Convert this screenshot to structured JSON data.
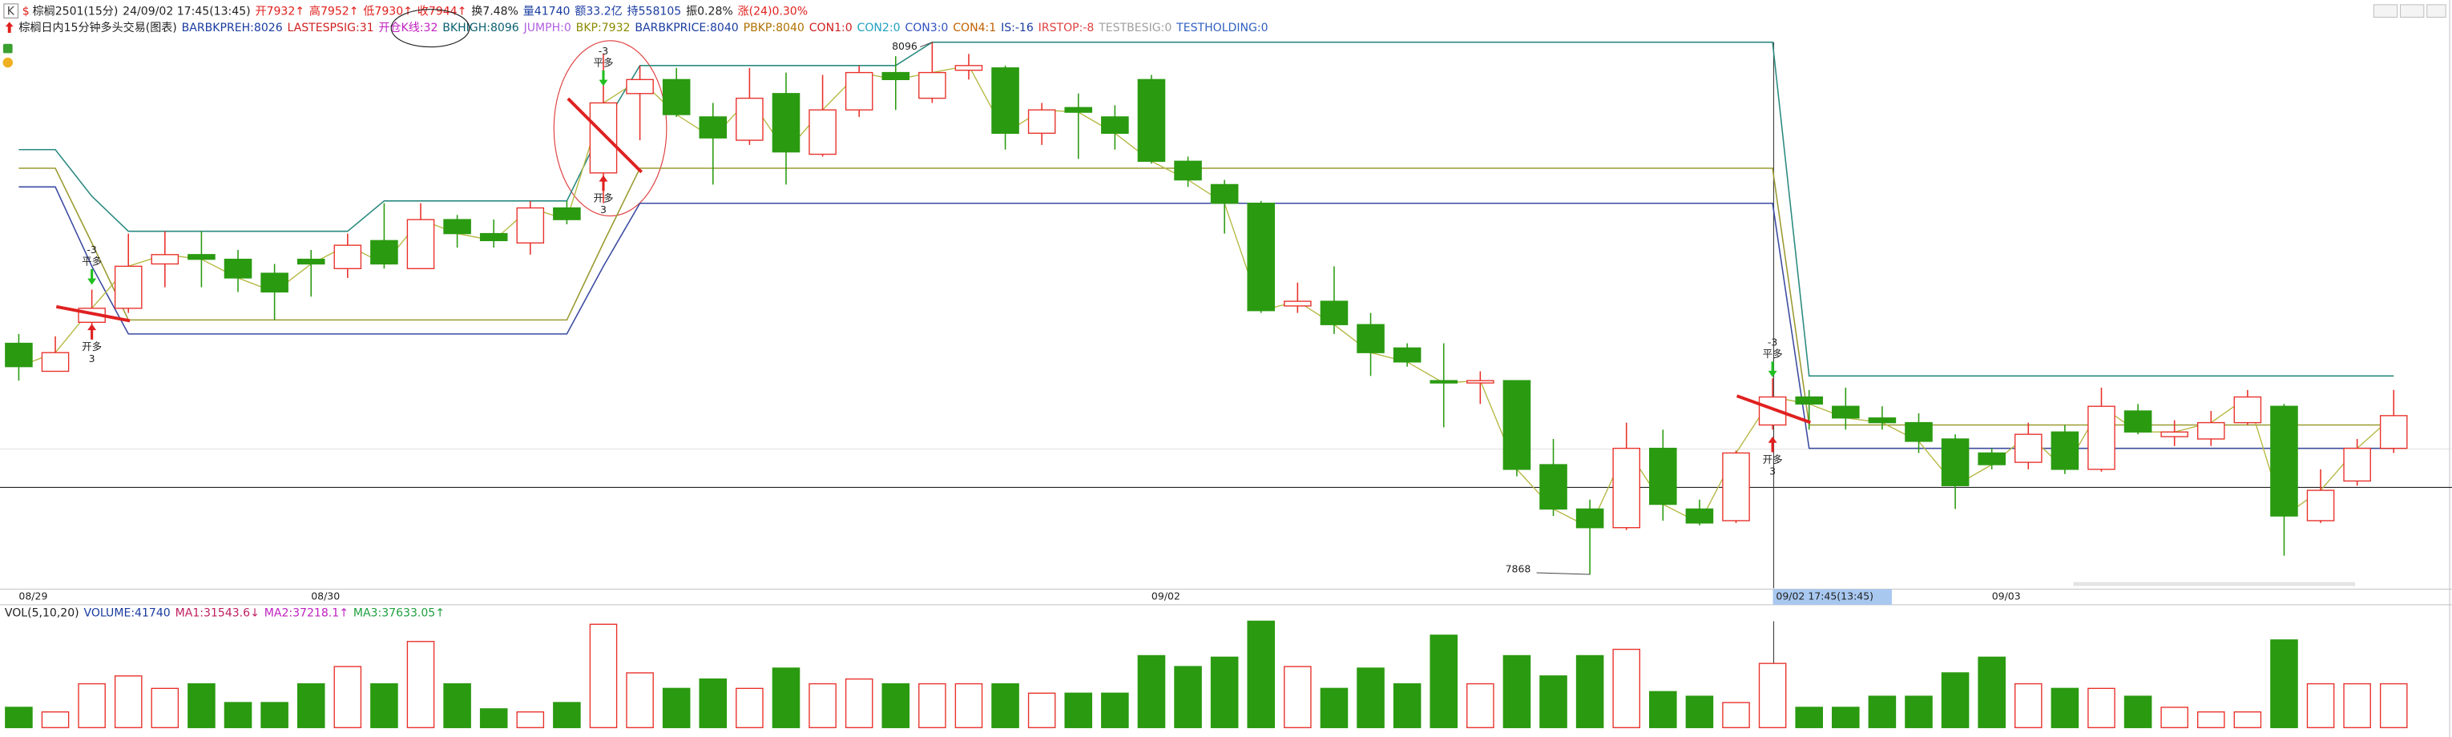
{
  "chart_data": {
    "type": "candlestick",
    "header": {
      "k_badge": "K",
      "symbol_icon": "$",
      "title": "棕榈2501(15分)",
      "datetime": "24/09/02 17:45(13:45)",
      "quote": [
        {
          "text": "开7932↑",
          "color": "#e0201c"
        },
        {
          "text": "高7952↑",
          "color": "#e0201c"
        },
        {
          "text": "低7930↑",
          "color": "#e0201c"
        },
        {
          "text": "收7944↑",
          "color": "#e0201c"
        },
        {
          "text": "换7.48%",
          "color": "#222222"
        },
        {
          "text": "量41740",
          "color": "#1a3ca0"
        },
        {
          "text": "额33.2亿",
          "color": "#1a3ca0"
        },
        {
          "text": "持558105",
          "color": "#1a3ca0"
        },
        {
          "text": "振0.28%",
          "color": "#222222"
        },
        {
          "text": "涨(24)0.30%",
          "color": "#e0201c"
        }
      ],
      "indicator_title": "棕榈日内15分钟多头交易(图表)",
      "indicators": [
        {
          "text": "BARBKPREH:8026",
          "color": "#1a3ca0"
        },
        {
          "text": "LASTESPSIG:31",
          "color": "#d02020"
        },
        {
          "text": "开仓K线:32",
          "color": "#c020c0"
        },
        {
          "text": "BKHIGH:8096",
          "color": "#0a6070"
        },
        {
          "text": "JUMPH:0",
          "color": "#b060e0"
        },
        {
          "text": "BKP:7932",
          "color": "#8a8a00"
        },
        {
          "text": "BARBKPRICE:8040",
          "color": "#1a3ca0"
        },
        {
          "text": "PBKP:8040",
          "color": "#b07000"
        },
        {
          "text": "CON1:0",
          "color": "#d02020"
        },
        {
          "text": "CON2:0",
          "color": "#20a0c0"
        },
        {
          "text": "CON3:0",
          "color": "#3050c0"
        },
        {
          "text": "CON4:1",
          "color": "#c06000"
        },
        {
          "text": "IS:-16",
          "color": "#1a3ca0"
        },
        {
          "text": "IRSTOP:-8",
          "color": "#e04040"
        },
        {
          "text": "TESTBESIG:0",
          "color": "#a0a0a0"
        },
        {
          "text": "TESTHOLDING:0",
          "color": "#3060c0"
        }
      ]
    },
    "categories": [
      "08/29",
      null,
      null,
      null,
      null,
      null,
      null,
      null,
      "08/30",
      null,
      null,
      null,
      null,
      null,
      null,
      null,
      null,
      null,
      null,
      null,
      null,
      null,
      null,
      null,
      null,
      null,
      null,
      null,
      null,
      null,
      null,
      "09/02",
      null,
      null,
      null,
      null,
      null,
      null,
      null,
      null,
      null,
      null,
      null,
      null,
      null,
      null,
      null,
      null,
      null,
      null,
      null,
      null,
      null,
      null,
      "09/03",
      null,
      null,
      null,
      null,
      null,
      null,
      null,
      null,
      null,
      null,
      null
    ],
    "open": [
      7967,
      7955,
      7976,
      7982,
      8001,
      8005,
      8003,
      7997,
      8003,
      7999,
      8011,
      7999,
      8020,
      8014,
      8010,
      8025,
      8040,
      8074,
      8080,
      8064,
      8054,
      8074,
      8048,
      8067,
      8083,
      8072,
      8084,
      8085,
      8057,
      8068,
      8064,
      8080,
      8045,
      8035,
      8027,
      7983,
      7985,
      7975,
      7965,
      7951,
      7950,
      7951,
      7915,
      7896,
      7888,
      7922,
      7896,
      7891,
      7932,
      7944,
      7940,
      7935,
      7933,
      7926,
      7920,
      7916,
      7929,
      7913,
      7938,
      7927,
      7926,
      7933,
      7940,
      7891,
      7908,
      7922
    ],
    "high": [
      7971,
      7970,
      7990,
      8014,
      8015,
      8015,
      8007,
      8001,
      8007,
      8014,
      8027,
      8027,
      8022,
      8020,
      8028,
      8028,
      8091,
      8086,
      8085,
      8070,
      8085,
      8083,
      8082,
      8086,
      8090,
      8096,
      8091,
      8086,
      8070,
      8074,
      8069,
      8082,
      8047,
      8037,
      8028,
      7993,
      8000,
      7980,
      7967,
      7967,
      7955,
      7951,
      7926,
      7900,
      7933,
      7930,
      7900,
      7921,
      7952,
      7947,
      7948,
      7940,
      7937,
      7928,
      7922,
      7933,
      7932,
      7948,
      7941,
      7934,
      7938,
      7947,
      7941,
      7913,
      7926,
      7947
    ],
    "low": [
      7951,
      7955,
      7970,
      7980,
      7991,
      7991,
      7989,
      7977,
      7987,
      7995,
      7999,
      7999,
      8008,
      8008,
      8005,
      8018,
      8027,
      8054,
      8064,
      8035,
      8052,
      8035,
      8047,
      8064,
      8067,
      8070,
      8080,
      8050,
      8052,
      8046,
      8050,
      8044,
      8034,
      8014,
      7980,
      7980,
      7971,
      7953,
      7957,
      7931,
      7941,
      7910,
      7893,
      7868,
      7887,
      7891,
      7889,
      7890,
      7930,
      7930,
      7930,
      7930,
      7920,
      7896,
      7913,
      7913,
      7911,
      7912,
      7928,
      7923,
      7923,
      7932,
      7876,
      7890,
      7906,
      7920
    ],
    "close": [
      7957,
      7963,
      7982,
      8000,
      8005,
      8003,
      7995,
      7989,
      8001,
      8009,
      8001,
      8020,
      8014,
      8011,
      8025,
      8020,
      8070,
      8080,
      8065,
      8055,
      8072,
      8049,
      8067,
      8083,
      8080,
      8083,
      8086,
      8057,
      8067,
      8066,
      8057,
      8045,
      8037,
      8027,
      7981,
      7985,
      7975,
      7963,
      7959,
      7950,
      7951,
      7913,
      7896,
      7888,
      7922,
      7898,
      7890,
      7920,
      7944,
      7941,
      7935,
      7933,
      7925,
      7906,
      7915,
      7928,
      7913,
      7940,
      7929,
      7929,
      7933,
      7944,
      7893,
      7904,
      7922,
      7936
    ],
    "up_color": "#e8302a",
    "down_color": "#2a9a10",
    "close_line_color": "#b5b842",
    "ylim": [
      7850,
      8110
    ],
    "levels": [
      {
        "color": "#2a8a80",
        "values": [
          8050,
          8050,
          8030,
          8015,
          8015,
          8015,
          8015,
          8015,
          8015,
          8015,
          8028,
          8028,
          8028,
          8028,
          8028,
          8028,
          8060,
          8086,
          8086,
          8086,
          8086,
          8086,
          8086,
          8086,
          8086,
          8096,
          8096,
          8096,
          8096,
          8096,
          8096,
          8096,
          8096,
          8096,
          8096,
          8096,
          8096,
          8096,
          8096,
          8096,
          8096,
          8096,
          8096,
          8096,
          8096,
          8096,
          8096,
          8096,
          8096,
          7953,
          7953,
          7953,
          7953,
          7953,
          7953,
          7953,
          7953,
          7953,
          7953,
          7953,
          7953,
          7953,
          7953,
          7953,
          7953,
          7953
        ]
      },
      {
        "color": "#9a9a30",
        "values": [
          8042,
          8042,
          8010,
          7977,
          7977,
          7977,
          7977,
          7977,
          7977,
          7977,
          7977,
          7977,
          7977,
          7977,
          7977,
          7977,
          8010,
          8042,
          8042,
          8042,
          8042,
          8042,
          8042,
          8042,
          8042,
          8042,
          8042,
          8042,
          8042,
          8042,
          8042,
          8042,
          8042,
          8042,
          8042,
          8042,
          8042,
          8042,
          8042,
          8042,
          8042,
          8042,
          8042,
          8042,
          8042,
          8042,
          8042,
          8042,
          8042,
          7932,
          7932,
          7932,
          7932,
          7932,
          7932,
          7932,
          7932,
          7932,
          7932,
          7932,
          7932,
          7932,
          7932,
          7932,
          7932,
          7932
        ]
      },
      {
        "color": "#3a4aa0",
        "values": [
          8034,
          8034,
          8000,
          7971,
          7971,
          7971,
          7971,
          7971,
          7971,
          7971,
          7971,
          7971,
          7971,
          7971,
          7971,
          7971,
          8000,
          8027,
          8027,
          8027,
          8027,
          8027,
          8027,
          8027,
          8027,
          8027,
          8027,
          8027,
          8027,
          8027,
          8027,
          8027,
          8027,
          8027,
          8027,
          8027,
          8027,
          8027,
          8027,
          8027,
          8027,
          8027,
          8027,
          8027,
          8027,
          8027,
          8027,
          8027,
          8027,
          7922,
          7922,
          7922,
          7922,
          7922,
          7922,
          7922,
          7922,
          7922,
          7922,
          7922,
          7922,
          7922,
          7922,
          7922,
          7922,
          7922
        ]
      }
    ],
    "signals": [
      {
        "close_amount": -3,
        "close_label": "平多",
        "open_label": "开多",
        "open_amount": 3
      },
      {
        "close_amount": -3,
        "close_label": "平多",
        "open_label": "开多",
        "open_amount": 3
      },
      {
        "close_amount": -3,
        "close_label": "平多",
        "open_label": "开多",
        "open_amount": 3
      }
    ],
    "crosshair_label": "09/02 17:45(13:45)",
    "volume": {
      "title": "VOL(5,10,20)",
      "readouts": [
        {
          "text": "VOLUME:41740",
          "color": "#1a3ca0"
        },
        {
          "text": "MA1:31543.6↓",
          "color": "#c02060"
        },
        {
          "text": "MA2:37218.1↑",
          "color": "#c020c0"
        },
        {
          "text": "MA3:37633.05↑",
          "color": "#20a040"
        }
      ],
      "ylim": [
        0,
        70000
      ],
      "values": [
        13200,
        10200,
        28500,
        33600,
        25500,
        28500,
        16300,
        16300,
        28500,
        39700,
        28500,
        56000,
        28500,
        12200,
        10200,
        16300,
        67200,
        35600,
        25500,
        31600,
        25500,
        38700,
        28500,
        31600,
        28500,
        28500,
        28500,
        28500,
        22400,
        22400,
        22400,
        46800,
        39700,
        45800,
        69200,
        39700,
        25500,
        38700,
        28500,
        60100,
        28500,
        46800,
        33600,
        46800,
        50900,
        23400,
        20400,
        16300,
        41740,
        13200,
        13200,
        20400,
        20400,
        35600,
        45800,
        28500,
        25500,
        25500,
        20400,
        13200,
        10200,
        10200,
        57000,
        28500,
        28500,
        28500
      ]
    }
  }
}
